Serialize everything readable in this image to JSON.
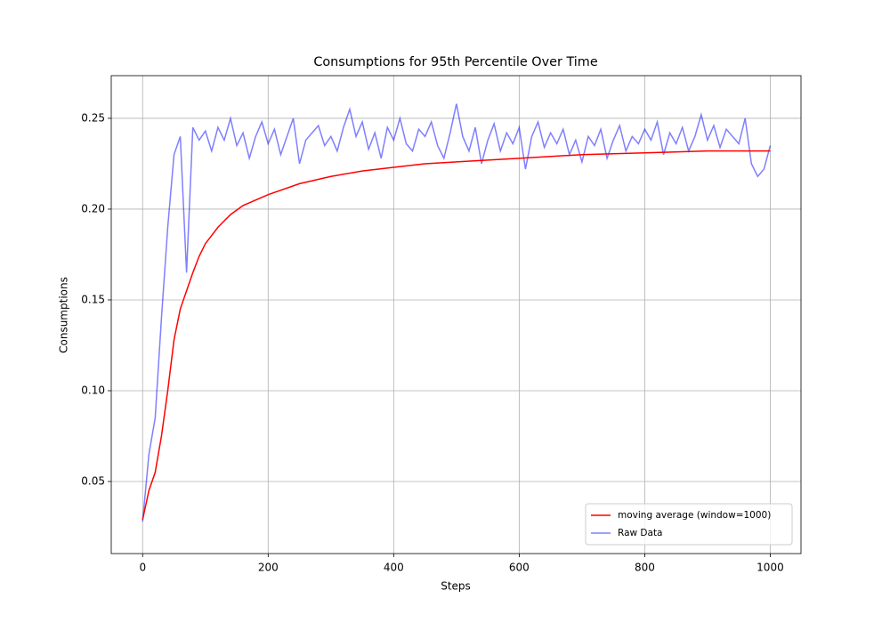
{
  "chart_data": {
    "type": "line",
    "title": "Consumptions for 95th Percentile Over Time",
    "xlabel": "Steps",
    "ylabel": "Consumptions",
    "xlim": [
      -50,
      1049
    ],
    "ylim": [
      0.0103,
      0.2735
    ],
    "xticks": [
      0,
      200,
      400,
      600,
      800,
      1000
    ],
    "yticks": [
      0.05,
      {
        "value": 0.1,
        "label": "0.10"
      },
      0.15,
      {
        "value": 0.2,
        "label": "0.20"
      },
      0.25
    ],
    "grid": true,
    "legend": "lower right",
    "series": [
      {
        "name": "moving average (window=1000)",
        "color": "#ff0000",
        "x": [
          0,
          10,
          20,
          30,
          40,
          50,
          60,
          70,
          80,
          90,
          100,
          120,
          140,
          160,
          180,
          200,
          250,
          300,
          350,
          400,
          450,
          500,
          600,
          700,
          800,
          900,
          1000
        ],
        "values": [
          0.029,
          0.045,
          0.055,
          0.075,
          0.1,
          0.128,
          0.145,
          0.155,
          0.165,
          0.174,
          0.181,
          0.19,
          0.197,
          0.202,
          0.205,
          0.208,
          0.214,
          0.218,
          0.221,
          0.223,
          0.225,
          0.226,
          0.228,
          0.23,
          0.231,
          0.232,
          0.232
        ]
      },
      {
        "name": "Raw Data",
        "color": "#0000ff",
        "x": [
          0,
          10,
          20,
          30,
          40,
          50,
          60,
          70,
          80,
          90,
          100,
          110,
          120,
          130,
          140,
          150,
          160,
          170,
          180,
          190,
          200,
          210,
          220,
          230,
          240,
          250,
          260,
          270,
          280,
          290,
          300,
          310,
          320,
          330,
          340,
          350,
          360,
          370,
          380,
          390,
          400,
          410,
          420,
          430,
          440,
          450,
          460,
          470,
          480,
          490,
          500,
          510,
          520,
          530,
          540,
          550,
          560,
          570,
          580,
          590,
          600,
          610,
          620,
          630,
          640,
          650,
          660,
          670,
          680,
          690,
          700,
          710,
          720,
          730,
          740,
          750,
          760,
          770,
          780,
          790,
          800,
          810,
          820,
          830,
          840,
          850,
          860,
          870,
          880,
          890,
          900,
          910,
          920,
          930,
          940,
          950,
          960,
          970,
          980,
          990,
          1000
        ],
        "values": [
          0.028,
          0.065,
          0.085,
          0.14,
          0.19,
          0.23,
          0.24,
          0.165,
          0.245,
          0.238,
          0.243,
          0.232,
          0.245,
          0.238,
          0.25,
          0.235,
          0.242,
          0.228,
          0.24,
          0.248,
          0.236,
          0.244,
          0.23,
          0.24,
          0.25,
          0.225,
          0.238,
          0.242,
          0.246,
          0.235,
          0.24,
          0.232,
          0.245,
          0.255,
          0.24,
          0.248,
          0.233,
          0.242,
          0.228,
          0.245,
          0.238,
          0.25,
          0.236,
          0.232,
          0.244,
          0.24,
          0.248,
          0.235,
          0.228,
          0.242,
          0.258,
          0.24,
          0.232,
          0.245,
          0.225,
          0.238,
          0.247,
          0.232,
          0.242,
          0.236,
          0.245,
          0.222,
          0.24,
          0.248,
          0.234,
          0.242,
          0.236,
          0.244,
          0.23,
          0.238,
          0.226,
          0.24,
          0.235,
          0.244,
          0.228,
          0.238,
          0.246,
          0.232,
          0.24,
          0.236,
          0.244,
          0.238,
          0.248,
          0.23,
          0.242,
          0.236,
          0.245,
          0.232,
          0.24,
          0.252,
          0.238,
          0.246,
          0.234,
          0.244,
          0.24,
          0.236,
          0.25,
          0.225,
          0.218,
          0.222,
          0.235
        ]
      }
    ]
  }
}
